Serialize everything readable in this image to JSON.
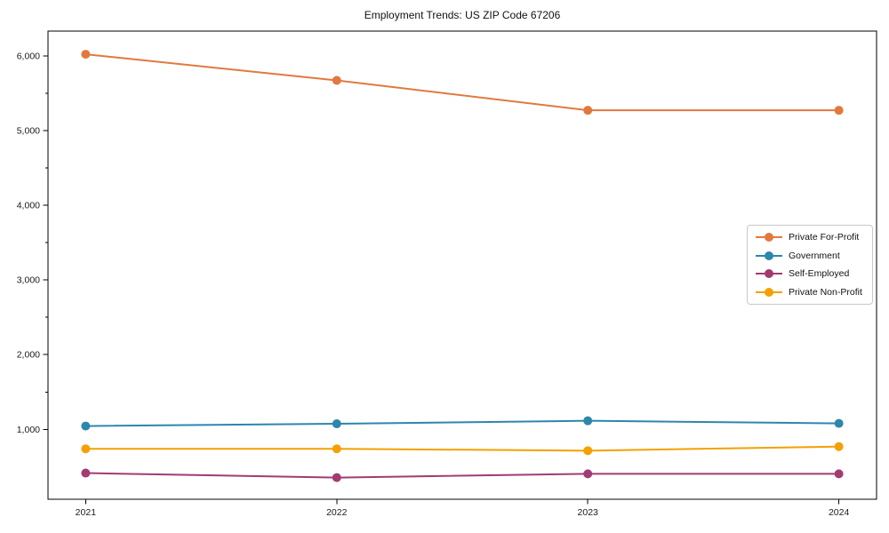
{
  "chart_data": {
    "type": "line",
    "title": "Employment Trends: US ZIP Code 67206",
    "xlabel": "",
    "ylabel": "",
    "x": [
      2021,
      2022,
      2023,
      2024
    ],
    "x_tick_labels": [
      "2021",
      "2022",
      "2023",
      "2024"
    ],
    "series": [
      {
        "name": "Private For-Profit",
        "color": "#E1793E",
        "values": [
          6020,
          5670,
          5270,
          5270
        ]
      },
      {
        "name": "Government",
        "color": "#2E86AB",
        "values": [
          1045,
          1075,
          1115,
          1080
        ]
      },
      {
        "name": "Self-Employed",
        "color": "#A23B72",
        "values": [
          415,
          355,
          405,
          405
        ]
      },
      {
        "name": "Private Non-Profit",
        "color": "#F5A002",
        "values": [
          740,
          740,
          715,
          770
        ]
      }
    ],
    "xlim": [
      2020.85,
      2024.15
    ],
    "ylim": [
      65,
      6330
    ],
    "y_major_ticks": [
      1000,
      2000,
      3000,
      4000,
      5000,
      6000
    ],
    "y_major_tick_labels": [
      "1,000",
      "2,000",
      "3,000",
      "4,000",
      "5,000",
      "6,000"
    ],
    "y_minor_ticks": [
      1500,
      2500,
      3500,
      4500,
      5500
    ],
    "grid": false,
    "legend_position": "center right",
    "marker": "circle",
    "marker_size": 5,
    "line_width": 2,
    "axis_color": "#000000",
    "tick_label_color": "#1a1a1a"
  }
}
